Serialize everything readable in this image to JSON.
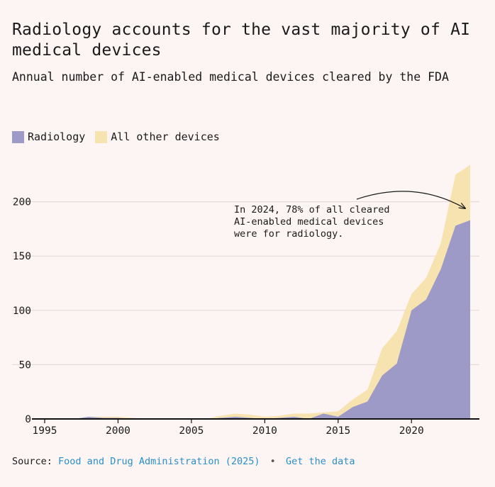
{
  "title": "Radiology accounts for the vast majority of AI medical devices",
  "subtitle": "Annual number of AI-enabled medical devices cleared by the FDA",
  "legend": {
    "radiology": "Radiology",
    "other": "All other devices"
  },
  "colors": {
    "radiology": "#9e9ac8",
    "other": "#f7e3b0",
    "background": "#fdf5f3",
    "link": "#2a8fc9"
  },
  "annotation": "In 2024, 78% of all cleared AI-enabled medical devices were for radiology.",
  "source": {
    "label": "Source:",
    "source_link": "Food and Drug Administration (2025)",
    "separator": "•",
    "data_link": "Get the data"
  },
  "chart_data": {
    "type": "area",
    "stacked": true,
    "x": [
      1995,
      1996,
      1997,
      1998,
      1999,
      2000,
      2001,
      2002,
      2003,
      2004,
      2005,
      2006,
      2007,
      2008,
      2009,
      2010,
      2011,
      2012,
      2013,
      2014,
      2015,
      2016,
      2017,
      2018,
      2019,
      2020,
      2021,
      2022,
      2023,
      2024
    ],
    "series": [
      {
        "name": "Radiology",
        "values": [
          0,
          0,
          0,
          2,
          1,
          1,
          0,
          0,
          0,
          0,
          0,
          0,
          1,
          2,
          1,
          0,
          1,
          2,
          0,
          5,
          2,
          11,
          16,
          40,
          51,
          100,
          110,
          138,
          178,
          183
        ]
      },
      {
        "name": "All other devices",
        "values": [
          1,
          0,
          0,
          0,
          1,
          1,
          1,
          0,
          0,
          0,
          0,
          0,
          2,
          3,
          3,
          2,
          2,
          3,
          5,
          1,
          5,
          7,
          11,
          25,
          30,
          15,
          20,
          24,
          47,
          51
        ]
      }
    ],
    "xlim": [
      1995,
      2024
    ],
    "ylim": [
      0,
      235
    ],
    "xticks": [
      1995,
      2000,
      2005,
      2010,
      2015,
      2020
    ],
    "yticks": [
      0,
      50,
      100,
      150,
      200
    ],
    "grid": true,
    "legend_position": "top-left"
  }
}
